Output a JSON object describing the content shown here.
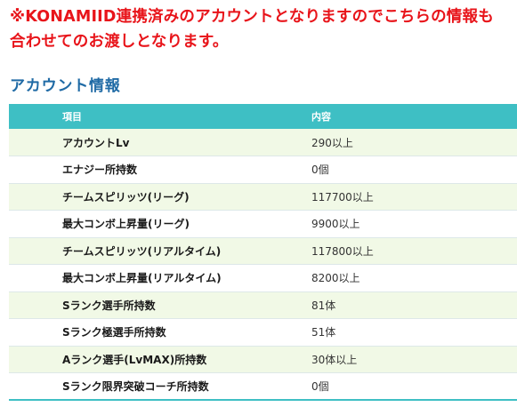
{
  "notice": {
    "line1": "※KONAMIID連携済みのアカウントとなりますのでこちらの情報も",
    "line2": "合わせてのお渡しとなります。"
  },
  "section": {
    "title": "アカウント情報"
  },
  "table": {
    "headers": {
      "item": "項目",
      "value": "内容"
    },
    "rows": [
      {
        "label": "アカウントLv",
        "value": "290以上"
      },
      {
        "label": "エナジー所持数",
        "value": "0個"
      },
      {
        "label": "チームスピリッツ(リーグ)",
        "value": "117700以上"
      },
      {
        "label": "最大コンボ上昇量(リーグ)",
        "value": "9900以上"
      },
      {
        "label": "チームスピリッツ(リアルタイム)",
        "value": "117800以上"
      },
      {
        "label": "最大コンボ上昇量(リアルタイム)",
        "value": "8200以上"
      },
      {
        "label": "Sランク選手所持数",
        "value": "81体"
      },
      {
        "label": "Sランク極選手所持数",
        "value": "51体"
      },
      {
        "label": "Aランク選手(LvMAX)所持数",
        "value": "30体以上"
      },
      {
        "label": "Sランク限界突破コーチ所持数",
        "value": "0個"
      }
    ]
  },
  "colors": {
    "notice_red": "#e8141a",
    "title_blue": "#1f6aa5",
    "header_teal": "#3ebfc4",
    "row_stripe": "#f1f9e6"
  }
}
